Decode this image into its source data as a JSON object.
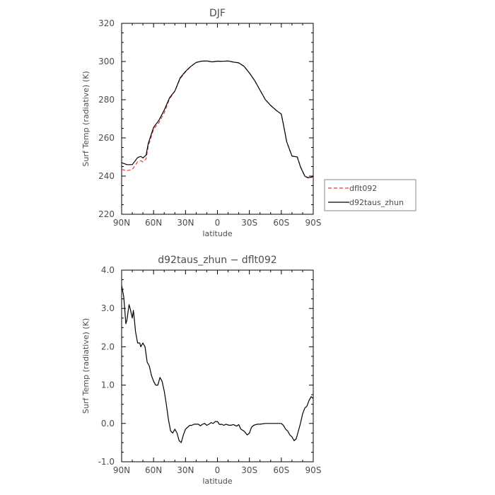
{
  "chart_data": [
    {
      "type": "line",
      "title": "DJF",
      "xlabel": "latitude",
      "ylabel": "Surf Temp (radiative) (K)",
      "xlim": [
        90,
        -90
      ],
      "ylim": [
        220,
        320
      ],
      "x_ticks": [
        "90N",
        "60N",
        "30N",
        "0",
        "30S",
        "60S",
        "90S"
      ],
      "y_ticks": [
        "220",
        "240",
        "260",
        "280",
        "300",
        "320"
      ],
      "x": [
        90,
        85,
        80,
        75,
        72,
        70,
        67,
        65,
        60,
        55,
        50,
        45,
        40,
        35,
        30,
        25,
        20,
        15,
        10,
        5,
        0,
        -5,
        -10,
        -15,
        -20,
        -25,
        -30,
        -35,
        -40,
        -45,
        -50,
        -55,
        -60,
        -62,
        -65,
        -70,
        -75,
        -78,
        -82,
        -85,
        -88,
        -90
      ],
      "series": [
        {
          "name": "dflt092",
          "color": "#e8383d",
          "dash": "dashed",
          "values": [
            243.5,
            242.8,
            243.5,
            247.5,
            248.0,
            247.5,
            249.0,
            255.5,
            264.5,
            268.0,
            273.0,
            280.5,
            284.5,
            291.0,
            294.5,
            297.5,
            299.5,
            300.2,
            300.3,
            299.8,
            300.2,
            300.1,
            300.3,
            299.7,
            299.3,
            297.5,
            294.0,
            290.0,
            285.0,
            280.0,
            277.0,
            274.5,
            272.5,
            267.0,
            258.0,
            250.5,
            250.0,
            245.0,
            240.0,
            239.0,
            239.3,
            239.5
          ]
        },
        {
          "name": "d92taus_zhun",
          "color": "#000000",
          "dash": "solid",
          "values": [
            247.0,
            246.0,
            246.0,
            249.7,
            250.3,
            249.5,
            251.0,
            257.0,
            265.5,
            269.2,
            274.5,
            281.0,
            284.5,
            291.5,
            294.8,
            297.5,
            299.5,
            300.2,
            300.3,
            299.8,
            300.2,
            300.1,
            300.3,
            299.7,
            299.3,
            297.5,
            294.0,
            290.0,
            285.0,
            280.0,
            277.0,
            274.5,
            272.5,
            267.0,
            258.0,
            250.5,
            250.0,
            244.8,
            240.0,
            239.2,
            239.4,
            240.0
          ]
        }
      ],
      "legend": "right-outside"
    },
    {
      "type": "line",
      "title": "d92taus_zhun − dflt092",
      "xlabel": "latitude",
      "ylabel": "Surf Temp (radiative) (K)",
      "xlim": [
        90,
        -90
      ],
      "ylim": [
        -1,
        4
      ],
      "x_ticks": [
        "90N",
        "60N",
        "30N",
        "0",
        "30S",
        "60S",
        "90S"
      ],
      "y_ticks": [
        "-1.0",
        "0.0",
        "1.0",
        "2.0",
        "3.0",
        "4.0"
      ],
      "x": [
        90,
        88,
        86,
        85,
        83,
        82,
        80,
        79,
        78,
        77,
        75,
        73,
        72,
        71,
        70,
        68,
        66,
        64,
        62,
        60,
        58,
        56,
        54,
        52,
        50,
        48,
        46,
        44,
        42,
        40,
        38,
        36,
        34,
        32,
        30,
        28,
        26,
        24,
        22,
        20,
        18,
        16,
        14,
        12,
        10,
        8,
        6,
        4,
        2,
        0,
        -2,
        -4,
        -6,
        -8,
        -10,
        -12,
        -15,
        -18,
        -20,
        -22,
        -25,
        -28,
        -30,
        -32,
        -34,
        -36,
        -38,
        -40,
        -45,
        -50,
        -55,
        -60,
        -62,
        -64,
        -66,
        -68,
        -70,
        -72,
        -74,
        -76,
        -78,
        -80,
        -82,
        -84,
        -86,
        -88,
        -90
      ],
      "series": [
        {
          "name": "",
          "color": "#000000",
          "dash": "solid",
          "values": [
            3.6,
            3.3,
            2.6,
            2.7,
            3.1,
            3.0,
            2.75,
            2.95,
            2.7,
            2.4,
            2.1,
            2.1,
            2.0,
            2.05,
            2.1,
            2.0,
            1.6,
            1.5,
            1.25,
            1.1,
            1.0,
            1.0,
            1.2,
            1.1,
            0.85,
            0.5,
            0.1,
            -0.2,
            -0.25,
            -0.15,
            -0.25,
            -0.45,
            -0.5,
            -0.3,
            -0.15,
            -0.1,
            -0.05,
            -0.05,
            -0.02,
            -0.02,
            -0.02,
            -0.06,
            -0.02,
            0.0,
            -0.05,
            -0.02,
            0.02,
            0.0,
            0.05,
            0.05,
            -0.03,
            -0.02,
            -0.05,
            -0.02,
            -0.04,
            -0.05,
            -0.03,
            -0.07,
            -0.03,
            -0.15,
            -0.2,
            -0.3,
            -0.25,
            -0.1,
            -0.05,
            -0.03,
            -0.02,
            -0.02,
            0.0,
            0.0,
            0.0,
            0.0,
            -0.05,
            -0.15,
            -0.2,
            -0.3,
            -0.35,
            -0.45,
            -0.4,
            -0.2,
            0.0,
            0.25,
            0.4,
            0.45,
            0.6,
            0.7,
            0.65
          ]
        }
      ]
    }
  ]
}
